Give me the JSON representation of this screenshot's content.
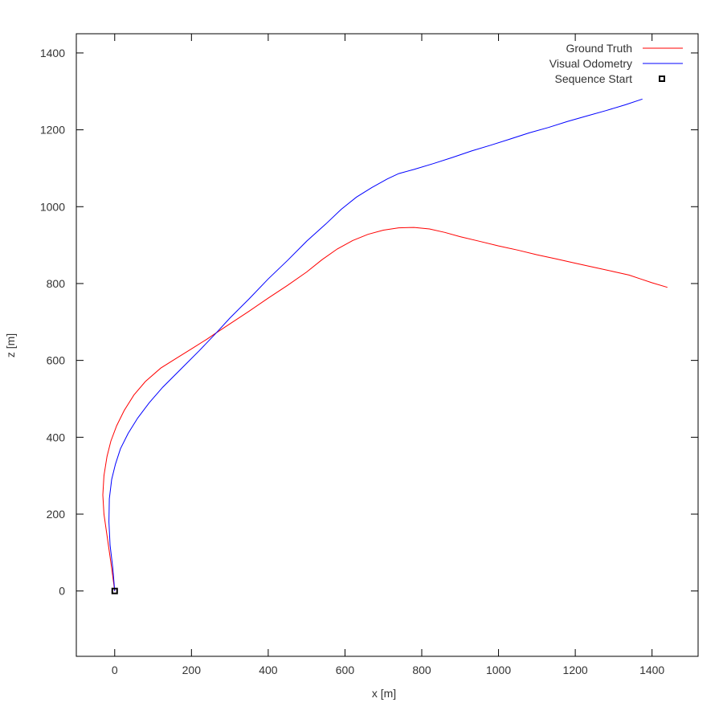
{
  "chart_data": {
    "type": "line",
    "title": "",
    "xlabel": "x [m]",
    "ylabel": "z [m]",
    "xlim": [
      -100,
      1520
    ],
    "ylim": [
      -170,
      1450
    ],
    "x_ticks": [
      0,
      200,
      400,
      600,
      800,
      1000,
      1200,
      1400
    ],
    "y_ticks": [
      0,
      200,
      400,
      600,
      800,
      1000,
      1200,
      1400
    ],
    "grid": false,
    "legend_position": "top-right",
    "series": [
      {
        "name": "Ground Truth",
        "color": "#ff0000",
        "points": [
          [
            0,
            0
          ],
          [
            -8,
            60
          ],
          [
            -18,
            130
          ],
          [
            -28,
            200
          ],
          [
            -31,
            250
          ],
          [
            -28,
            300
          ],
          [
            -20,
            350
          ],
          [
            -10,
            390
          ],
          [
            5,
            430
          ],
          [
            25,
            470
          ],
          [
            50,
            510
          ],
          [
            80,
            545
          ],
          [
            120,
            580
          ],
          [
            160,
            605
          ],
          [
            200,
            630
          ],
          [
            240,
            655
          ],
          [
            265,
            672
          ],
          [
            300,
            695
          ],
          [
            350,
            728
          ],
          [
            400,
            762
          ],
          [
            450,
            795
          ],
          [
            500,
            830
          ],
          [
            540,
            862
          ],
          [
            580,
            890
          ],
          [
            620,
            912
          ],
          [
            660,
            928
          ],
          [
            700,
            939
          ],
          [
            740,
            945
          ],
          [
            780,
            946
          ],
          [
            820,
            942
          ],
          [
            860,
            933
          ],
          [
            900,
            922
          ],
          [
            950,
            910
          ],
          [
            1000,
            898
          ],
          [
            1050,
            887
          ],
          [
            1100,
            875
          ],
          [
            1150,
            864
          ],
          [
            1200,
            853
          ],
          [
            1250,
            842
          ],
          [
            1300,
            831
          ],
          [
            1340,
            822
          ],
          [
            1370,
            812
          ],
          [
            1400,
            802
          ],
          [
            1440,
            790
          ]
        ]
      },
      {
        "name": "Visual Odometry",
        "color": "#0000ff",
        "points": [
          [
            0,
            0
          ],
          [
            -5,
            60
          ],
          [
            -12,
            120
          ],
          [
            -15,
            180
          ],
          [
            -14,
            240
          ],
          [
            -8,
            290
          ],
          [
            2,
            330
          ],
          [
            15,
            370
          ],
          [
            35,
            410
          ],
          [
            60,
            450
          ],
          [
            90,
            490
          ],
          [
            125,
            530
          ],
          [
            170,
            575
          ],
          [
            220,
            625
          ],
          [
            265,
            672
          ],
          [
            300,
            710
          ],
          [
            350,
            760
          ],
          [
            400,
            812
          ],
          [
            450,
            860
          ],
          [
            500,
            910
          ],
          [
            550,
            955
          ],
          [
            590,
            993
          ],
          [
            630,
            1025
          ],
          [
            670,
            1050
          ],
          [
            710,
            1072
          ],
          [
            740,
            1086
          ],
          [
            780,
            1097
          ],
          [
            830,
            1112
          ],
          [
            880,
            1128
          ],
          [
            930,
            1145
          ],
          [
            980,
            1160
          ],
          [
            1030,
            1176
          ],
          [
            1080,
            1192
          ],
          [
            1130,
            1206
          ],
          [
            1180,
            1222
          ],
          [
            1230,
            1236
          ],
          [
            1280,
            1250
          ],
          [
            1330,
            1265
          ],
          [
            1375,
            1280
          ]
        ]
      },
      {
        "name": "Sequence Start",
        "color": "#000000",
        "marker": "square",
        "points": [
          [
            0,
            0
          ]
        ]
      }
    ]
  }
}
